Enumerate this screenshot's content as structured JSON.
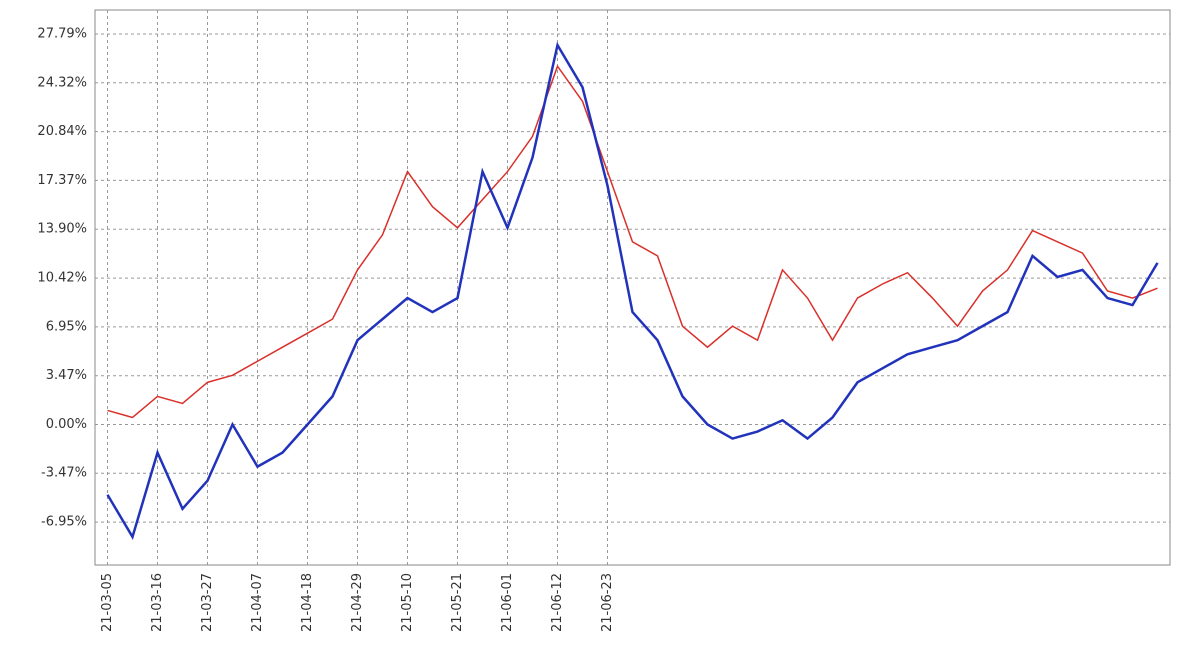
{
  "chart_data": {
    "type": "line",
    "categories": [
      "21-03-05",
      null,
      "21-03-16",
      null,
      "21-03-27",
      null,
      "21-04-07",
      null,
      "21-04-18",
      null,
      "21-04-29",
      null,
      "21-05-10",
      null,
      "21-05-21",
      null,
      "21-06-01",
      null,
      "21-06-12",
      null,
      "21-06-23",
      null,
      null,
      null,
      null,
      null,
      null,
      null,
      null,
      null,
      null,
      null,
      null,
      null,
      null,
      null,
      null,
      null,
      null,
      null,
      null,
      null,
      null
    ],
    "series": [
      {
        "color": "#d9302a",
        "values": [
          1,
          0.5,
          2,
          1.5,
          3,
          3.5,
          4.5,
          5.5,
          6.5,
          7.5,
          11,
          13.5,
          18,
          15.5,
          14,
          16,
          18,
          20.5,
          25.5,
          23,
          18,
          13,
          12,
          7,
          5.5,
          7,
          6,
          11,
          9,
          6,
          9,
          10,
          10.8,
          9,
          7,
          9.5,
          11,
          13.8,
          13,
          12.2,
          9.5,
          9,
          9.7
        ]
      },
      {
        "color": "#2233bb",
        "values": [
          -5,
          -8,
          -2,
          -6,
          -4,
          0,
          -3,
          -2,
          0,
          2,
          6,
          7.5,
          9,
          8,
          9,
          18,
          14,
          19,
          27,
          24,
          17,
          8,
          6,
          2,
          0,
          -1,
          -0.5,
          0.3,
          -1,
          0.5,
          3,
          4,
          5,
          5.5,
          6,
          7,
          8,
          12,
          10.5,
          11,
          9,
          8.5,
          11.5
        ]
      }
    ],
    "ylim": [
      -10,
      29.5
    ],
    "yticks": [
      {
        "value": -6.95,
        "label": "-6.95%"
      },
      {
        "value": -3.47,
        "label": "-3.47%"
      },
      {
        "value": 0,
        "label": "0.00%"
      },
      {
        "value": 3.47,
        "label": "3.47%"
      },
      {
        "value": 6.95,
        "label": "6.95%"
      },
      {
        "value": 10.42,
        "label": "10.42%"
      },
      {
        "value": 13.9,
        "label": "13.90%"
      },
      {
        "value": 17.37,
        "label": "17.37%"
      },
      {
        "value": 20.84,
        "label": "20.84%"
      },
      {
        "value": 24.32,
        "label": "24.32%"
      },
      {
        "value": 27.79,
        "label": "27.79%"
      }
    ],
    "grid": true
  }
}
